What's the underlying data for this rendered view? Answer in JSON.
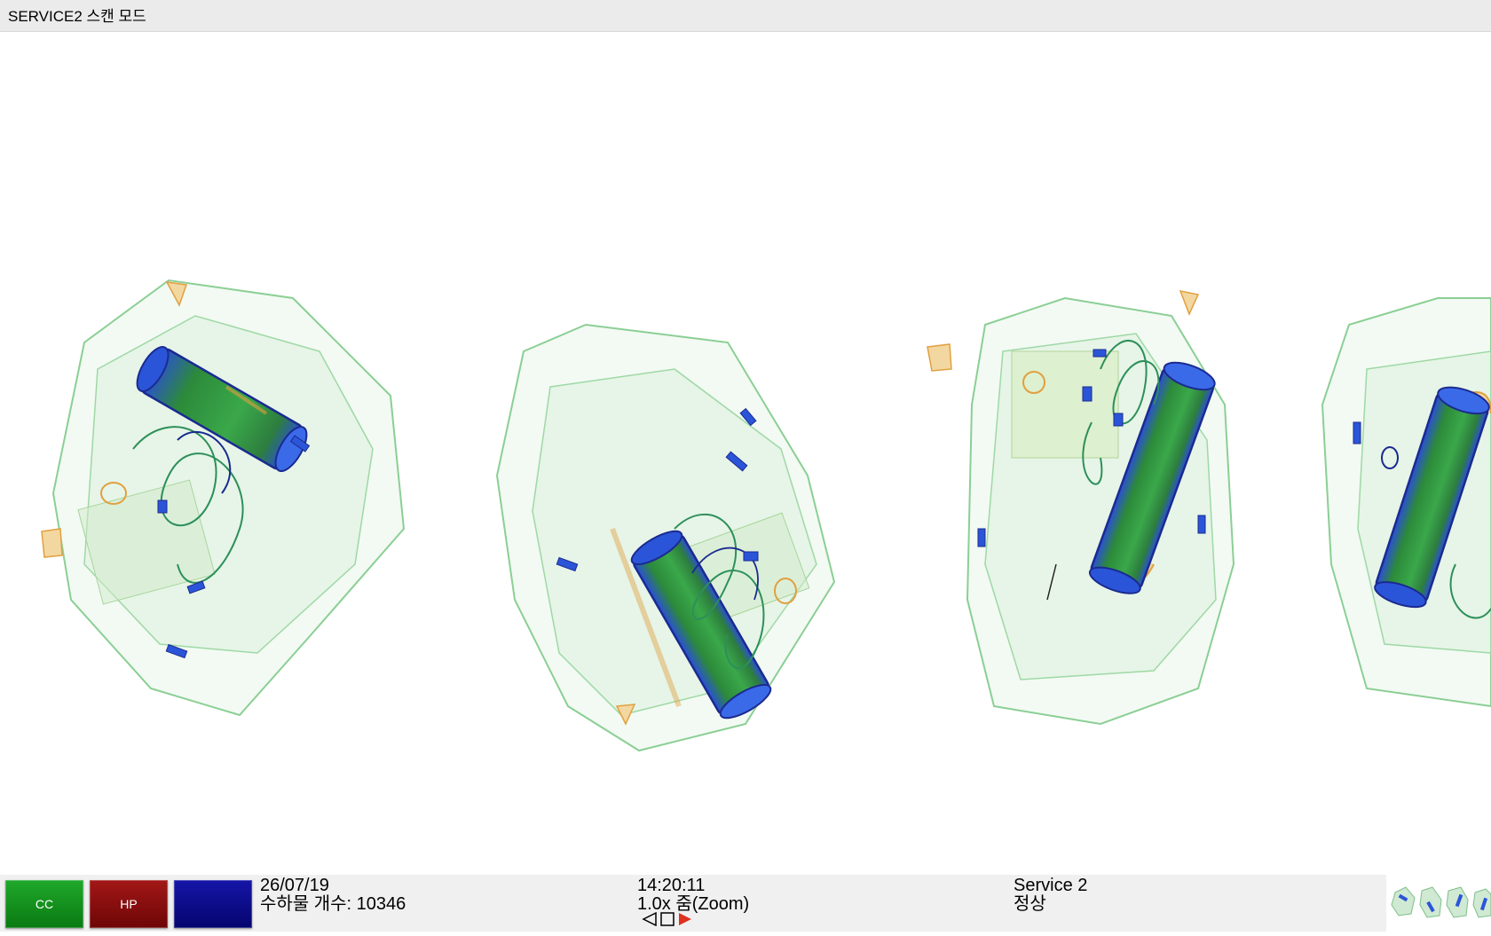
{
  "window": {
    "title": "SERVICE2 스캔 모드"
  },
  "toolbar": {
    "buttons": [
      {
        "label": "CC",
        "color": "#0f8f1b"
      },
      {
        "label": "HP",
        "color": "#8a0e0e"
      },
      {
        "label": "",
        "color": "#0a0a8c"
      }
    ]
  },
  "status": {
    "date": "26/07/19",
    "baggage_count": "수하물 개수: 10346",
    "time": "14:20:11",
    "zoom": "1.0x 줌(Zoom)",
    "service": "Service 2",
    "state": "정상"
  },
  "colors": {
    "organic": "#2fa84a",
    "metal": "#2b55d8",
    "inorganic": "#e0a040",
    "play_accent": "#e03020"
  },
  "icons": {
    "prev": "triangle-left-icon",
    "stop": "square-icon",
    "play": "play-icon"
  }
}
